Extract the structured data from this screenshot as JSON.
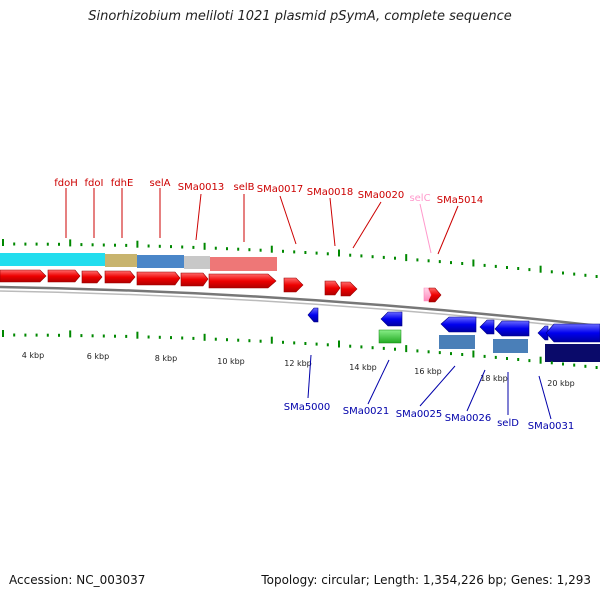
{
  "title": "Sinorhizobium meliloti 1021 plasmid pSymA, complete sequence",
  "footer": {
    "accession_label": "Accession:",
    "accession": "NC_003037",
    "topology_label": "Topology:",
    "topology": "circular",
    "length_label": "Length:",
    "length": "1,354,226 bp",
    "genes_label": "Genes:",
    "genes": "1,293"
  },
  "ruler": {
    "tick_labels": [
      "4 kbp",
      "6 kbp",
      "8 kbp",
      "10 kbp",
      "12 kbp",
      "14 kbp",
      "16 kbp",
      "18 kbp",
      "20 kbp"
    ]
  },
  "top_gene_labels": [
    {
      "name": "fdoH",
      "color": "#cc0000"
    },
    {
      "name": "fdoI",
      "color": "#cc0000"
    },
    {
      "name": "fdhE",
      "color": "#cc0000"
    },
    {
      "name": "selA",
      "color": "#cc0000"
    },
    {
      "name": "SMa0013",
      "color": "#cc0000"
    },
    {
      "name": "selB",
      "color": "#cc0000"
    },
    {
      "name": "SMa0017",
      "color": "#cc0000"
    },
    {
      "name": "SMa0018",
      "color": "#cc0000"
    },
    {
      "name": "SMa0020",
      "color": "#cc0000"
    },
    {
      "name": "selC",
      "color": "#ff99cc"
    },
    {
      "name": "SMa5014",
      "color": "#cc0000"
    }
  ],
  "bottom_gene_labels": [
    {
      "name": "SMa5000"
    },
    {
      "name": "SMa0021"
    },
    {
      "name": "SMa0025"
    },
    {
      "name": "SMa0026"
    },
    {
      "name": "selD"
    },
    {
      "name": "SMa0031"
    }
  ],
  "colors": {
    "forward_gene": "#ee0000",
    "reverse_gene": "#0000ee",
    "rna_gene": "#ff99cc",
    "label_forward": "#cc0000",
    "label_reverse": "#0000aa",
    "tick_green": "#008800",
    "backbone": "#888888"
  }
}
